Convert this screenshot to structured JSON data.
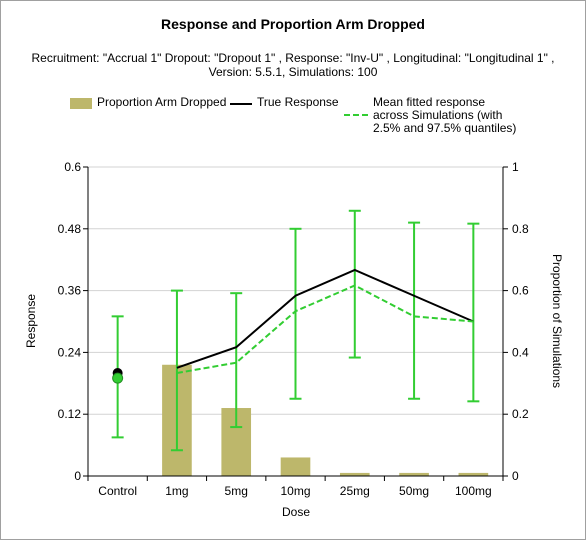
{
  "chart_data": {
    "type": "bar",
    "title": "Response and Proportion Arm Dropped",
    "subtitle": "Recruitment: \"Accrual 1\" Dropout: \"Dropout 1\" , Response: \"Inv-U\" , Longitudinal: \"Longitudinal 1\" , Version: 5.5.1, Simulations: 100",
    "xlabel": "Dose",
    "ylabel": "Response",
    "y2label": "Proportion of Simulations",
    "categories": [
      "Control",
      "1mg",
      "5mg",
      "10mg",
      "25mg",
      "50mg",
      "100mg"
    ],
    "ylim": [
      0,
      0.6
    ],
    "y2lim": [
      0,
      1
    ],
    "yticks": [
      "0",
      "0.12",
      "0.24",
      "0.36",
      "0.48",
      "0.6"
    ],
    "y2ticks": [
      "0",
      "0.2",
      "0.4",
      "0.6",
      "0.8",
      "1"
    ],
    "legend": {
      "bar_label": "Proportion Arm Dropped",
      "true_label": "True Response",
      "fitted_label": "Mean fitted response across Simulations (with 2.5% and 97.5% quantiles)"
    },
    "series": [
      {
        "name": "Proportion Arm Dropped",
        "kind": "bar",
        "axis": "right",
        "color": "#bdb76b",
        "values": [
          0,
          0.36,
          0.22,
          0.06,
          0.01,
          0.01,
          0.01
        ]
      },
      {
        "name": "True Response",
        "kind": "line",
        "color": "#000000",
        "values": [
          0.2,
          0.21,
          0.25,
          0.35,
          0.4,
          0.35,
          0.3
        ]
      },
      {
        "name": "Mean fitted response across Simulations (with 2.5% and 97.5% quantiles)",
        "kind": "dashed-line",
        "color": "#32cd32",
        "values": [
          0.19,
          0.2,
          0.22,
          0.32,
          0.37,
          0.31,
          0.3
        ],
        "lower": [
          0.075,
          0.05,
          0.095,
          0.15,
          0.23,
          0.15,
          0.145
        ],
        "upper": [
          0.31,
          0.36,
          0.355,
          0.48,
          0.515,
          0.492,
          0.49
        ]
      }
    ]
  }
}
